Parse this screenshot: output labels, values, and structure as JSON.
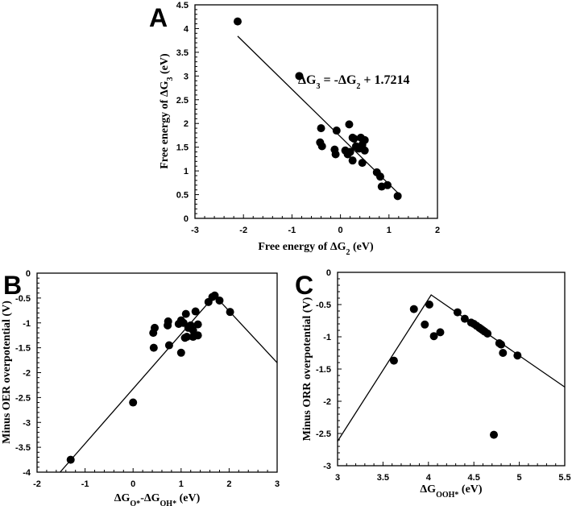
{
  "chart_data": [
    {
      "panel_label": "A",
      "type": "scatter",
      "xlabel": [
        {
          "t": "Free energy of ΔG"
        },
        {
          "t": "2",
          "sub": true
        },
        {
          "t": " (eV)"
        }
      ],
      "ylabel": [
        {
          "t": "Free energy of ΔG"
        },
        {
          "t": "3",
          "sub": true
        },
        {
          "t": " (eV)"
        }
      ],
      "xlim": [
        -3,
        2
      ],
      "ylim": [
        0,
        4.5
      ],
      "xticks": [
        -3,
        -2,
        -1,
        0,
        1,
        2
      ],
      "yticks": [
        0,
        0.5,
        1,
        1.5,
        2,
        2.5,
        3,
        3.5,
        4,
        4.5
      ],
      "grid": false,
      "annotation": [
        {
          "t": "ΔG"
        },
        {
          "t": "3",
          "sub": true
        },
        {
          "t": " = -ΔG"
        },
        {
          "t": "2",
          "sub": true
        },
        {
          "t": " + 1.7214"
        }
      ],
      "fit_line": [
        [
          -2.12,
          3.84
        ],
        [
          1.18,
          0.54
        ]
      ],
      "points": [
        [
          -2.12,
          4.15
        ],
        [
          -0.85,
          3.0
        ],
        [
          -0.4,
          1.9
        ],
        [
          -0.42,
          1.6
        ],
        [
          -0.38,
          1.52
        ],
        [
          -0.12,
          1.45
        ],
        [
          -0.1,
          1.35
        ],
        [
          -0.08,
          1.85
        ],
        [
          0.1,
          1.43
        ],
        [
          0.15,
          1.35
        ],
        [
          0.2,
          1.4
        ],
        [
          0.18,
          1.98
        ],
        [
          0.25,
          1.7
        ],
        [
          0.28,
          1.68
        ],
        [
          0.25,
          1.22
        ],
        [
          0.32,
          1.52
        ],
        [
          0.38,
          1.47
        ],
        [
          0.42,
          1.7
        ],
        [
          0.45,
          1.55
        ],
        [
          0.45,
          1.17
        ],
        [
          0.5,
          1.65
        ],
        [
          0.5,
          1.43
        ],
        [
          0.75,
          0.97
        ],
        [
          0.82,
          0.88
        ],
        [
          0.85,
          0.67
        ],
        [
          0.97,
          0.7
        ],
        [
          1.18,
          0.47
        ]
      ]
    },
    {
      "panel_label": "B",
      "type": "scatter",
      "xlabel": [
        {
          "t": "ΔG"
        },
        {
          "t": "O*",
          "sub": true
        },
        {
          "t": "-ΔG"
        },
        {
          "t": "OH*",
          "sub": true
        },
        {
          "t": " (eV)"
        }
      ],
      "ylabel": [
        {
          "t": "Minus OER overpotential (V)"
        }
      ],
      "xlim": [
        -2,
        3
      ],
      "ylim": [
        -4,
        0
      ],
      "xticks": [
        -2,
        -1,
        0,
        1,
        2,
        3
      ],
      "yticks": [
        -4,
        -3.5,
        -3,
        -2.5,
        -2,
        -1.5,
        -1,
        -0.5,
        0
      ],
      "grid": false,
      "fit_line": [
        [
          -1.52,
          -4.0
        ],
        [
          1.7,
          -0.45
        ],
        [
          3.0,
          -1.8
        ]
      ],
      "points": [
        [
          -1.3,
          -3.75
        ],
        [
          0,
          -2.6
        ],
        [
          0.42,
          -1.2
        ],
        [
          0.45,
          -1.1
        ],
        [
          0.43,
          -1.5
        ],
        [
          0.72,
          -1.05
        ],
        [
          0.73,
          -0.97
        ],
        [
          0.75,
          -1.45
        ],
        [
          0.95,
          -1.02
        ],
        [
          1.0,
          -0.95
        ],
        [
          1.05,
          -1.0
        ],
        [
          1.0,
          -1.6
        ],
        [
          1.1,
          -0.82
        ],
        [
          1.08,
          -1.3
        ],
        [
          1.12,
          -1.28
        ],
        [
          1.15,
          -1.1
        ],
        [
          1.2,
          -1.05
        ],
        [
          1.25,
          -1.15
        ],
        [
          1.25,
          -1.28
        ],
        [
          1.3,
          -0.77
        ],
        [
          1.35,
          -1.03
        ],
        [
          1.35,
          -1.25
        ],
        [
          1.57,
          -0.58
        ],
        [
          1.65,
          -0.48
        ],
        [
          1.7,
          -0.45
        ],
        [
          1.8,
          -0.55
        ],
        [
          2.02,
          -0.78
        ]
      ]
    },
    {
      "panel_label": "C",
      "type": "scatter",
      "xlabel": [
        {
          "t": "ΔG"
        },
        {
          "t": "OOH*",
          "sub": true
        },
        {
          "t": " (eV)"
        }
      ],
      "ylabel": [
        {
          "t": "Minus ORR overpotential (V)"
        }
      ],
      "xlim": [
        3,
        5.5
      ],
      "ylim": [
        -3,
        0
      ],
      "xticks": [
        3,
        3.5,
        4,
        4.5,
        5,
        5.5
      ],
      "yticks": [
        -3,
        -2.5,
        -2,
        -1.5,
        -1,
        -0.5,
        0
      ],
      "grid": false,
      "fit_line": [
        [
          3.0,
          -2.62
        ],
        [
          4.03,
          -0.35
        ],
        [
          5.5,
          -1.78
        ]
      ],
      "points": [
        [
          3.62,
          -1.37
        ],
        [
          3.84,
          -0.57
        ],
        [
          3.96,
          -0.81
        ],
        [
          4.01,
          -0.5
        ],
        [
          4.06,
          -0.99
        ],
        [
          4.13,
          -0.93
        ],
        [
          4.32,
          -0.62
        ],
        [
          4.4,
          -0.72
        ],
        [
          4.47,
          -0.78
        ],
        [
          4.5,
          -0.8
        ],
        [
          4.53,
          -0.83
        ],
        [
          4.56,
          -0.86
        ],
        [
          4.58,
          -0.88
        ],
        [
          4.6,
          -0.9
        ],
        [
          4.62,
          -0.92
        ],
        [
          4.65,
          -0.95
        ],
        [
          4.78,
          -1.1
        ],
        [
          4.8,
          -1.12
        ],
        [
          4.82,
          -1.25
        ],
        [
          4.98,
          -1.29
        ],
        [
          4.72,
          -2.52
        ]
      ]
    }
  ]
}
